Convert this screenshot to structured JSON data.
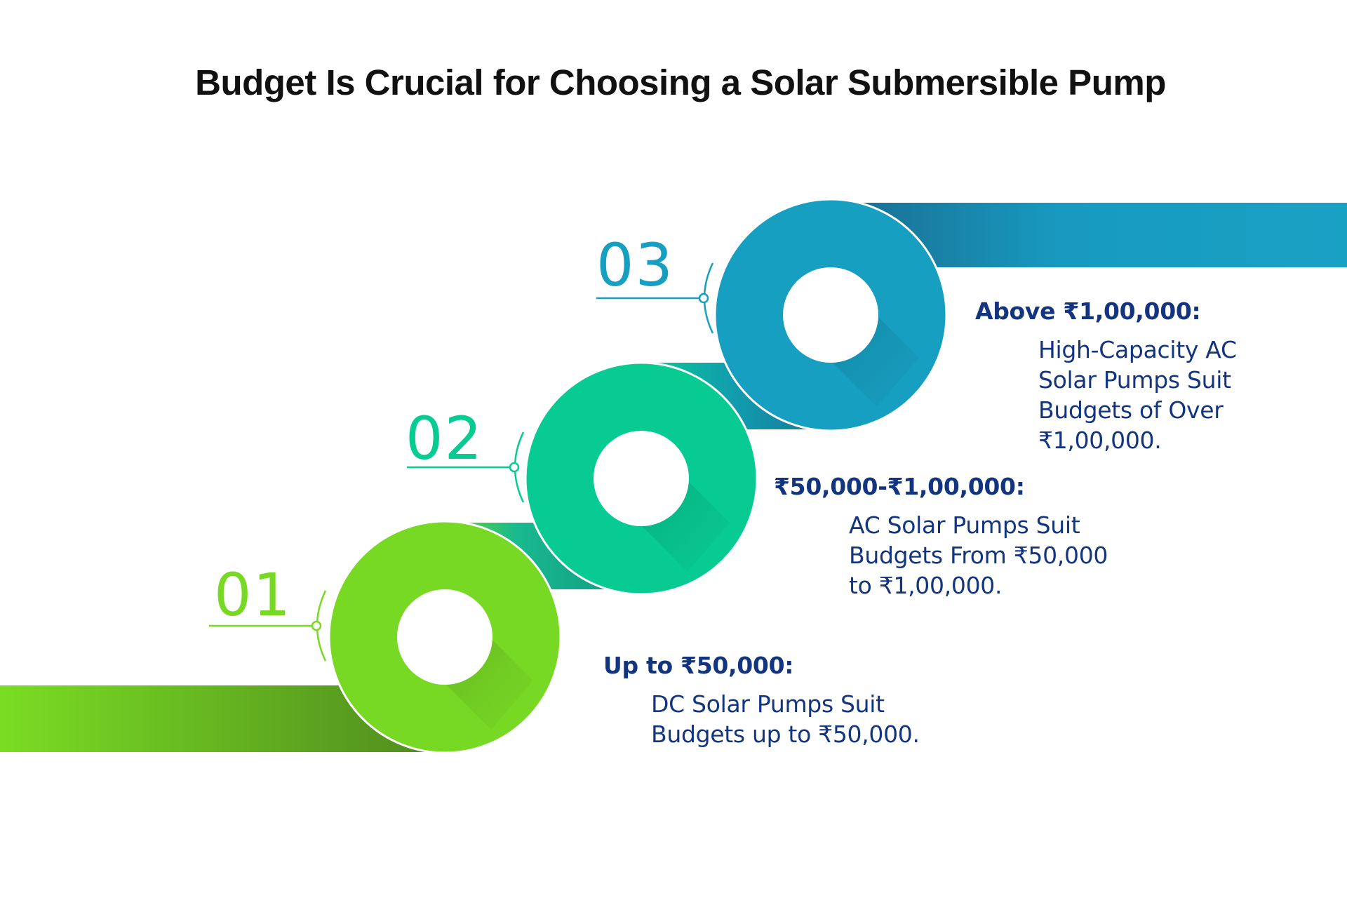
{
  "title": "Budget Is Crucial for Choosing a Solar Submersible Pump",
  "colors": {
    "step1": "#78d925",
    "step2": "#08cb94",
    "step3": "#179fc1",
    "text": "#13357f"
  },
  "steps": [
    {
      "number": "01",
      "heading": "Up to ₹50,000:",
      "description": "DC Solar Pumps Suit\nBudgets up to ₹50,000."
    },
    {
      "number": "02",
      "heading": "₹50,000-₹1,00,000:",
      "description": "AC Solar Pumps Suit\nBudgets From ₹50,000\nto ₹1,00,000."
    },
    {
      "number": "03",
      "heading": "Above ₹1,00,000:",
      "description": "High-Capacity AC\nSolar Pumps Suit\nBudgets of Over\n₹1,00,000."
    }
  ]
}
